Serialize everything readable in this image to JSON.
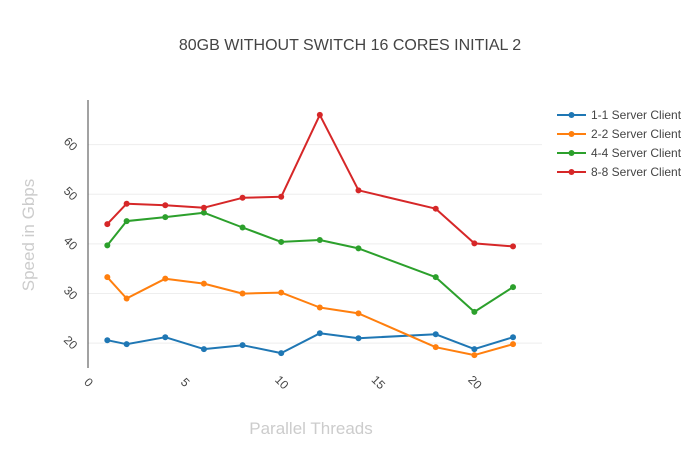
{
  "chart_data": {
    "type": "line",
    "title": "80GB WITHOUT SWITCH 16 CORES INITIAL 2",
    "xlabel": "Parallel Threads",
    "ylabel": "Speed in Gbps",
    "xlim": [
      0,
      23.5
    ],
    "ylim": [
      15,
      69
    ],
    "xticks": [
      0,
      5,
      10,
      15,
      20
    ],
    "yticks": [
      20,
      30,
      40,
      50,
      60
    ],
    "grid": true,
    "legend_position": "top-right",
    "series": [
      {
        "name": "1-1 Server Client",
        "color": "#1f77b4",
        "points": [
          [
            1,
            20.6
          ],
          [
            2,
            19.8
          ],
          [
            4,
            21.2
          ],
          [
            6,
            18.8
          ],
          [
            8,
            19.6
          ],
          [
            10,
            18.0
          ],
          [
            12,
            22.0
          ],
          [
            14,
            21.0
          ],
          [
            18,
            21.8
          ],
          [
            20,
            18.8
          ],
          [
            22,
            21.2
          ]
        ]
      },
      {
        "name": "2-2 Server Client",
        "color": "#ff7f0e",
        "points": [
          [
            1,
            33.3
          ],
          [
            2,
            29.0
          ],
          [
            4,
            33.0
          ],
          [
            6,
            32.0
          ],
          [
            8,
            30.0
          ],
          [
            10,
            30.2
          ],
          [
            12,
            27.2
          ],
          [
            14,
            26.0
          ],
          [
            18,
            19.2
          ],
          [
            20,
            17.6
          ],
          [
            22,
            19.8
          ]
        ]
      },
      {
        "name": "4-4 Server Client",
        "color": "#2ca02c",
        "points": [
          [
            1,
            39.7
          ],
          [
            2,
            44.6
          ],
          [
            4,
            45.4
          ],
          [
            6,
            46.3
          ],
          [
            8,
            43.3
          ],
          [
            10,
            40.4
          ],
          [
            12,
            40.8
          ],
          [
            14,
            39.1
          ],
          [
            18,
            33.3
          ],
          [
            20,
            26.3
          ],
          [
            22,
            31.3
          ]
        ]
      },
      {
        "name": "8-8 Server Client",
        "color": "#d62728",
        "points": [
          [
            1,
            44.0
          ],
          [
            2,
            48.1
          ],
          [
            4,
            47.8
          ],
          [
            6,
            47.3
          ],
          [
            8,
            49.3
          ],
          [
            10,
            49.5
          ],
          [
            12,
            66.0
          ],
          [
            14,
            50.8
          ],
          [
            18,
            47.1
          ],
          [
            20,
            40.1
          ],
          [
            22,
            39.5
          ]
        ]
      }
    ]
  }
}
